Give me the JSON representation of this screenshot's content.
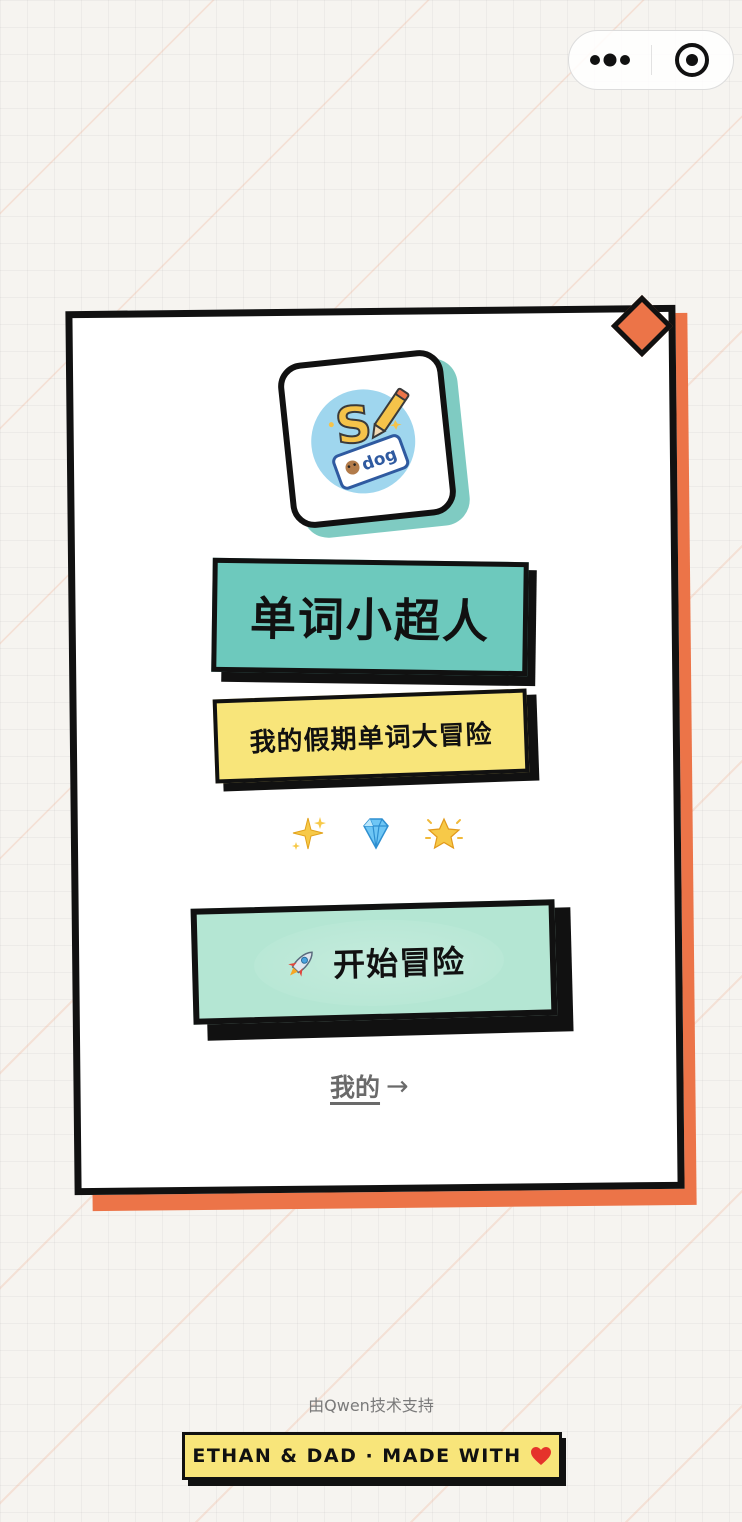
{
  "capsule": {
    "more_icon": "more-dots-icon",
    "close_icon": "target-close-icon"
  },
  "app": {
    "icon": "word-spelling-logo-icon",
    "logo_word": "dog",
    "logo_letter": "S",
    "title": "单词小超人",
    "subtitle": "我的假期单词大冒险",
    "decorations": [
      "sparkles-icon",
      "gem-icon",
      "glowing-star-icon"
    ]
  },
  "actions": {
    "start_icon": "rocket-icon",
    "start_label": "开始冒险",
    "mine_label": "我的",
    "mine_arrow": "→"
  },
  "footer": {
    "powered_by": "由Qwen技术支持",
    "credit": "ETHAN & DAD · MADE WITH",
    "heart_icon": "red-heart-icon"
  },
  "colors": {
    "background": "#f6f4f0",
    "accent_orange": "#ec7448",
    "teal": "#6dc9bd",
    "mint": "#b4e6d3",
    "yellow": "#f8e57a",
    "ink": "#111111"
  }
}
